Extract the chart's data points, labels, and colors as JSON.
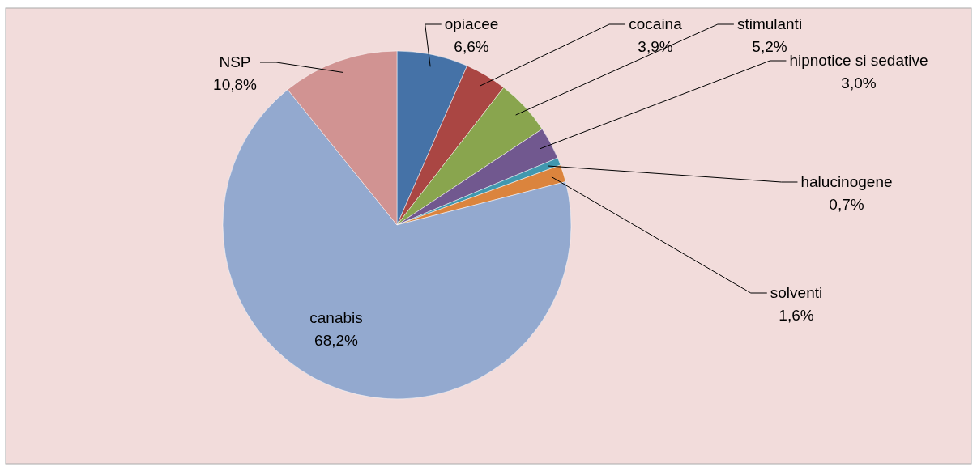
{
  "chart_data": {
    "type": "pie",
    "categories": [
      "opiacee",
      "cocaina",
      "stimulanti",
      "hipnotice si sedative",
      "halucinogene",
      "solventi",
      "canabis",
      "NSP"
    ],
    "values": [
      6.6,
      3.9,
      5.2,
      3.0,
      0.7,
      1.6,
      68.2,
      10.8
    ],
    "colors": [
      "#4572a7",
      "#aa4643",
      "#89a54e",
      "#71588f",
      "#4198af",
      "#db843d",
      "#93a9cf",
      "#d19392"
    ],
    "value_labels": [
      "6,6%",
      "3,9%",
      "5,2%",
      "3,0%",
      "0,7%",
      "1,6%",
      "68,2%",
      "10,8%"
    ]
  }
}
